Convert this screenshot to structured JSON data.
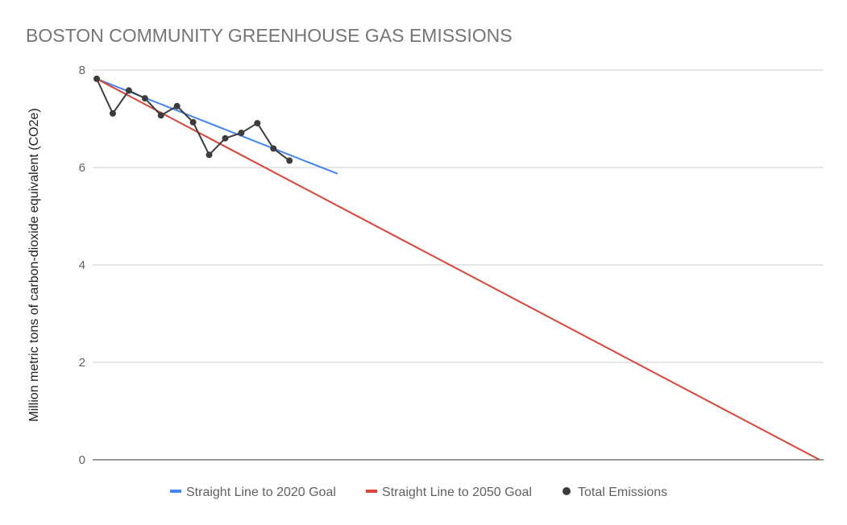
{
  "chart_data": {
    "type": "line",
    "title": "BOSTON COMMUNITY GREENHOUSE GAS EMISSIONS",
    "xlabel": "",
    "ylabel": "Million metric tons of carbon-dioxide equivalent (CO2e)",
    "xlim": [
      2005,
      2050
    ],
    "ylim": [
      0,
      8
    ],
    "yticks": [
      "0",
      "2",
      "4",
      "6",
      "8"
    ],
    "grid": true,
    "legend": "bottom",
    "series": [
      {
        "name": "Straight Line to 2020 Goal",
        "color": "#4285f4",
        "x": [
          2005,
          2020
        ],
        "values": [
          7.82,
          5.87
        ]
      },
      {
        "name": "Straight Line to 2050 Goal",
        "color": "#db4437",
        "x": [
          2005,
          2050
        ],
        "values": [
          7.82,
          0
        ]
      },
      {
        "name": "Total Emissions",
        "color": "#3c3c3c",
        "markers": true,
        "x": [
          2005,
          2006,
          2007,
          2008,
          2009,
          2010,
          2011,
          2012,
          2013,
          2014,
          2015,
          2016,
          2017
        ],
        "values": [
          7.82,
          7.11,
          7.58,
          7.42,
          7.07,
          7.26,
          6.93,
          6.26,
          6.6,
          6.71,
          6.91,
          6.39,
          6.14
        ]
      }
    ]
  }
}
